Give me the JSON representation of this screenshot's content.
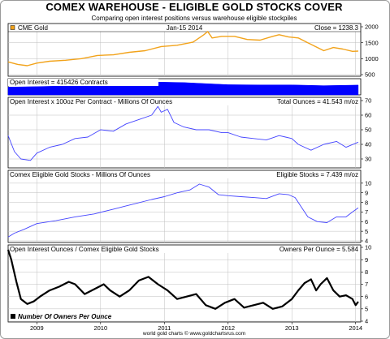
{
  "title": "COMEX WAREHOUSE - ELIGIBLE GOLD STOCKS COVER",
  "subtitle": "Comparing open interest positions versus warehouse eligible stockpiles",
  "footer": "world gold charts © www.goldchartsrus.com",
  "colors": {
    "gold": "#f2a31b",
    "oi": "#0000ff",
    "line": "#4444ff",
    "owners": "#000000",
    "grid": "#bfbfbf"
  },
  "chart_data": [
    {
      "type": "line",
      "panel": "gold",
      "legend": "CME Gold",
      "header_center": "Jan-15 2014",
      "header_right": "Close = 1238.3",
      "ylim": [
        500,
        2000
      ],
      "yticks": [
        "2000",
        "1500",
        "1000",
        "500"
      ],
      "x_start": 2008.55,
      "x_end": 2014.08,
      "series": [
        {
          "x": [
            2008.55,
            2008.7,
            2008.85,
            2009.0,
            2009.2,
            2009.45,
            2009.7,
            2009.95,
            2010.2,
            2010.45,
            2010.7,
            2010.95,
            2011.2,
            2011.45,
            2011.62,
            2011.68,
            2011.75,
            2011.9,
            2012.1,
            2012.3,
            2012.5,
            2012.7,
            2012.8,
            2012.95,
            2013.1,
            2013.25,
            2013.35,
            2013.5,
            2013.65,
            2013.8,
            2013.95,
            2014.04
          ],
          "values": [
            900,
            820,
            780,
            860,
            920,
            950,
            1000,
            1100,
            1120,
            1200,
            1250,
            1380,
            1420,
            1520,
            1750,
            1850,
            1650,
            1700,
            1700,
            1600,
            1580,
            1700,
            1750,
            1680,
            1650,
            1500,
            1400,
            1250,
            1350,
            1300,
            1230,
            1238
          ]
        }
      ]
    },
    {
      "type": "area",
      "panel": "open-interest",
      "legend": "Open Interest = 415426 Contracts",
      "ylim": [
        0,
        650000
      ],
      "x_start": 2008.55,
      "x_end": 2014.08,
      "series": [
        {
          "x": [
            2008.55,
            2009.0,
            2009.5,
            2010.0,
            2010.5,
            2010.9,
            2011.3,
            2011.7,
            2012.0,
            2012.5,
            2013.0,
            2013.5,
            2014.04
          ],
          "values": [
            330000,
            350000,
            380000,
            430000,
            500000,
            540000,
            520000,
            470000,
            430000,
            420000,
            420000,
            390000,
            415426
          ]
        }
      ]
    },
    {
      "type": "line",
      "panel": "oi-ounces",
      "legend": "Open Interest x 100oz Per Contract - Millions Of Ounces",
      "header_right": "Total Ounces = 41.543 m/oz",
      "ylim": [
        25,
        70
      ],
      "yticks": [
        "70",
        "60",
        "50",
        "40",
        "30"
      ],
      "x_start": 2008.55,
      "x_end": 2014.08,
      "series": [
        {
          "x": [
            2008.55,
            2008.65,
            2008.75,
            2008.9,
            2009.0,
            2009.2,
            2009.4,
            2009.6,
            2009.8,
            2010.0,
            2010.2,
            2010.4,
            2010.6,
            2010.8,
            2010.9,
            2010.95,
            2011.05,
            2011.15,
            2011.3,
            2011.5,
            2011.7,
            2011.9,
            2012.0,
            2012.2,
            2012.4,
            2012.6,
            2012.8,
            2012.9,
            2013.0,
            2013.1,
            2013.3,
            2013.5,
            2013.7,
            2013.85,
            2014.04
          ],
          "values": [
            46,
            35,
            30,
            29,
            34,
            38,
            40,
            44,
            45,
            50,
            49,
            54,
            57,
            60,
            66,
            62,
            64,
            55,
            52,
            50,
            50,
            48,
            48,
            45,
            44,
            43,
            46,
            45,
            44,
            40,
            36,
            40,
            42,
            38,
            41.5
          ]
        }
      ]
    },
    {
      "type": "line",
      "panel": "eligible-stocks",
      "legend": "Comex Eligible Gold Stocks - Millions Of Ounces",
      "header_right": "Eligible Stocks = 7.439 m/oz",
      "ylim": [
        4,
        11
      ],
      "yticks": [
        "10",
        "9",
        "8",
        "7",
        "6",
        "5",
        "4"
      ],
      "x_start": 2008.55,
      "x_end": 2014.08,
      "series": [
        {
          "x": [
            2008.55,
            2008.65,
            2008.8,
            2009.0,
            2009.3,
            2009.6,
            2009.9,
            2010.2,
            2010.5,
            2010.8,
            2011.0,
            2011.2,
            2011.4,
            2011.55,
            2011.7,
            2011.85,
            2012.0,
            2012.2,
            2012.4,
            2012.6,
            2012.8,
            2012.95,
            2013.05,
            2013.15,
            2013.25,
            2013.4,
            2013.55,
            2013.7,
            2013.85,
            2013.95,
            2014.04
          ],
          "values": [
            4.4,
            4.8,
            5.2,
            5.8,
            6.1,
            6.5,
            6.8,
            7.3,
            7.8,
            8.3,
            8.6,
            9.0,
            9.3,
            9.9,
            9.6,
            8.8,
            8.7,
            8.6,
            8.5,
            8.4,
            8.9,
            8.8,
            8.5,
            7.5,
            6.5,
            6.0,
            5.9,
            6.5,
            6.5,
            7.0,
            7.44
          ]
        }
      ]
    },
    {
      "type": "line",
      "panel": "owners-per-ounce",
      "legend": "Open Interest Ounces / Comex Eligible Gold Stocks",
      "header_right": "Owners Per Ounce = 5.584",
      "series_label": "Number Of Owners Per Ounce",
      "ylim": [
        4,
        10
      ],
      "yticks": [
        "10",
        "9",
        "8",
        "7",
        "6",
        "5",
        "4"
      ],
      "xticks": [
        "2009",
        "2010",
        "2011",
        "2012",
        "2013",
        "2014"
      ],
      "x_start": 2008.55,
      "x_end": 2014.08,
      "series": [
        {
          "x": [
            2008.55,
            2008.6,
            2008.68,
            2008.75,
            2008.85,
            2008.95,
            2009.05,
            2009.2,
            2009.35,
            2009.5,
            2009.6,
            2009.75,
            2009.9,
            2010.05,
            2010.15,
            2010.3,
            2010.45,
            2010.6,
            2010.75,
            2010.9,
            2011.05,
            2011.2,
            2011.35,
            2011.5,
            2011.65,
            2011.8,
            2011.95,
            2012.1,
            2012.25,
            2012.4,
            2012.55,
            2012.7,
            2012.85,
            2013.0,
            2013.1,
            2013.2,
            2013.3,
            2013.38,
            2013.45,
            2013.55,
            2013.65,
            2013.75,
            2013.85,
            2013.95,
            2014.0,
            2014.04
          ],
          "values": [
            9.8,
            9.0,
            7.2,
            5.8,
            5.4,
            5.6,
            6.0,
            6.5,
            6.8,
            7.2,
            7.0,
            6.2,
            6.6,
            7.0,
            6.5,
            6.0,
            6.5,
            7.3,
            7.6,
            7.0,
            6.5,
            5.8,
            6.0,
            6.2,
            5.3,
            5.0,
            5.5,
            5.8,
            5.1,
            5.3,
            5.5,
            5.0,
            5.2,
            5.8,
            6.5,
            7.1,
            7.4,
            6.5,
            7.0,
            7.5,
            6.5,
            6.0,
            6.1,
            5.8,
            5.3,
            5.58
          ]
        }
      ]
    }
  ]
}
